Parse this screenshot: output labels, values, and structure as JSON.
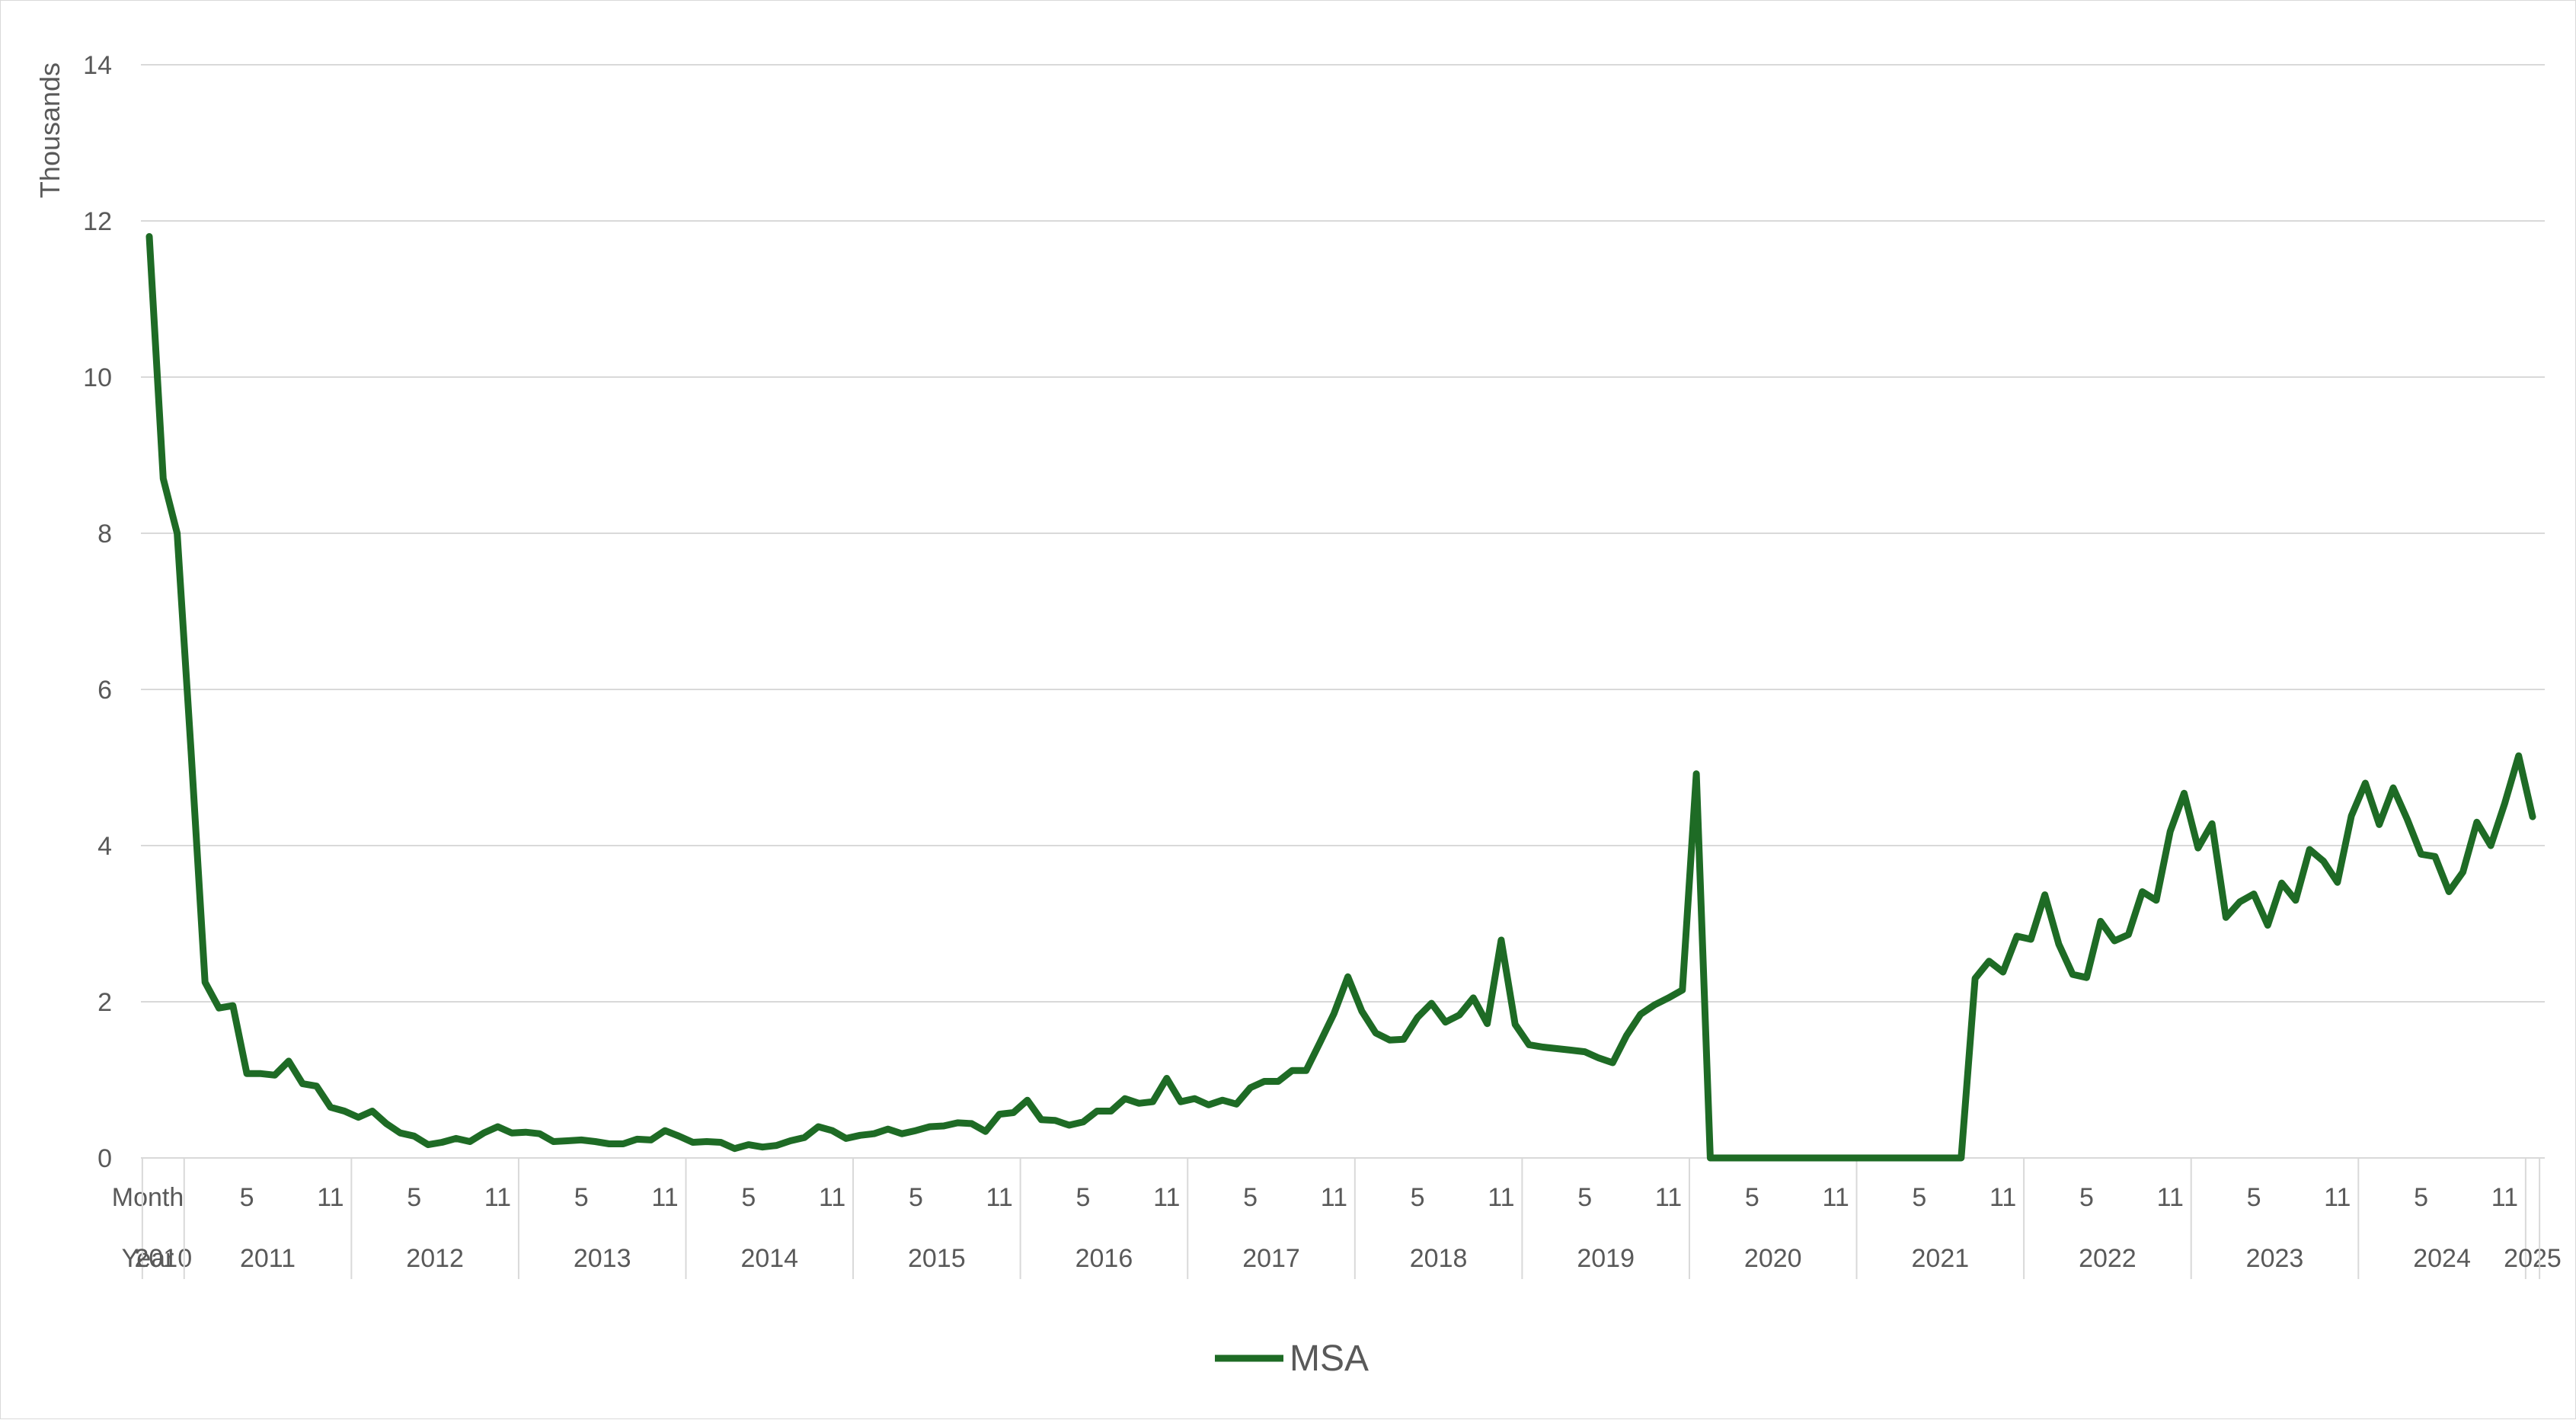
{
  "chart_data": {
    "type": "line",
    "ylabel": "Thousands",
    "ylim": [
      0,
      14
    ],
    "yticks": [
      0,
      2,
      4,
      6,
      8,
      10,
      12,
      14
    ],
    "grid": true,
    "legend_position": "bottom",
    "x_axis_level_labels": [
      "Month",
      "Year"
    ],
    "series_color": "#1e6b25",
    "x": [
      "2010-10",
      "2010-11",
      "2010-12",
      "2011-01",
      "2011-02",
      "2011-03",
      "2011-04",
      "2011-05",
      "2011-06",
      "2011-07",
      "2011-08",
      "2011-09",
      "2011-10",
      "2011-11",
      "2011-12",
      "2012-01",
      "2012-02",
      "2012-03",
      "2012-04",
      "2012-05",
      "2012-06",
      "2012-07",
      "2012-08",
      "2012-09",
      "2012-10",
      "2012-11",
      "2012-12",
      "2013-01",
      "2013-02",
      "2013-03",
      "2013-04",
      "2013-05",
      "2013-06",
      "2013-07",
      "2013-08",
      "2013-09",
      "2013-10",
      "2013-11",
      "2013-12",
      "2014-01",
      "2014-02",
      "2014-03",
      "2014-04",
      "2014-05",
      "2014-06",
      "2014-07",
      "2014-08",
      "2014-09",
      "2014-10",
      "2014-11",
      "2014-12",
      "2015-01",
      "2015-02",
      "2015-03",
      "2015-04",
      "2015-05",
      "2015-06",
      "2015-07",
      "2015-08",
      "2015-09",
      "2015-10",
      "2015-11",
      "2015-12",
      "2016-01",
      "2016-02",
      "2016-03",
      "2016-04",
      "2016-05",
      "2016-06",
      "2016-07",
      "2016-08",
      "2016-09",
      "2016-10",
      "2016-11",
      "2016-12",
      "2017-01",
      "2017-02",
      "2017-03",
      "2017-04",
      "2017-05",
      "2017-06",
      "2017-07",
      "2017-08",
      "2017-09",
      "2017-10",
      "2017-11",
      "2017-12",
      "2018-01",
      "2018-02",
      "2018-03",
      "2018-04",
      "2018-05",
      "2018-06",
      "2018-07",
      "2018-08",
      "2018-09",
      "2018-10",
      "2018-11",
      "2018-12",
      "2019-01",
      "2019-02",
      "2019-03",
      "2019-04",
      "2019-05",
      "2019-06",
      "2019-07",
      "2019-08",
      "2019-09",
      "2019-10",
      "2019-11",
      "2019-12",
      "2020-01",
      "2020-02",
      "2020-03",
      "2020-04",
      "2020-05",
      "2020-06",
      "2020-07",
      "2020-08",
      "2020-09",
      "2020-10",
      "2020-11",
      "2020-12",
      "2021-01",
      "2021-02",
      "2021-03",
      "2021-04",
      "2021-05",
      "2021-06",
      "2021-07",
      "2021-08",
      "2021-09",
      "2021-10",
      "2021-11",
      "2021-12",
      "2022-01",
      "2022-02",
      "2022-03",
      "2022-04",
      "2022-05",
      "2022-06",
      "2022-07",
      "2022-08",
      "2022-09",
      "2022-10",
      "2022-11",
      "2022-12",
      "2023-01",
      "2023-02",
      "2023-03",
      "2023-04",
      "2023-05",
      "2023-06",
      "2023-07",
      "2023-08",
      "2023-09",
      "2023-10",
      "2023-11",
      "2023-12",
      "2024-01",
      "2024-02",
      "2024-03",
      "2024-04",
      "2024-05",
      "2024-06",
      "2024-07",
      "2024-08",
      "2024-09",
      "2024-10",
      "2024-11",
      "2024-12",
      "2025-01"
    ],
    "series": [
      {
        "name": "MSA",
        "values": [
          11.8,
          8.7,
          8.0,
          5.2,
          2.25,
          1.92,
          1.95,
          1.08,
          1.08,
          1.06,
          1.24,
          0.95,
          0.92,
          0.65,
          0.6,
          0.52,
          0.6,
          0.44,
          0.32,
          0.28,
          0.17,
          0.2,
          0.25,
          0.21,
          0.32,
          0.4,
          0.32,
          0.33,
          0.31,
          0.21,
          0.22,
          0.23,
          0.21,
          0.18,
          0.18,
          0.24,
          0.23,
          0.35,
          0.28,
          0.2,
          0.21,
          0.2,
          0.12,
          0.17,
          0.14,
          0.16,
          0.22,
          0.26,
          0.4,
          0.35,
          0.25,
          0.29,
          0.31,
          0.37,
          0.31,
          0.35,
          0.4,
          0.41,
          0.45,
          0.44,
          0.34,
          0.56,
          0.58,
          0.74,
          0.49,
          0.48,
          0.42,
          0.46,
          0.6,
          0.6,
          0.76,
          0.7,
          0.72,
          1.02,
          0.72,
          0.76,
          0.68,
          0.74,
          0.69,
          0.9,
          0.98,
          0.98,
          1.12,
          1.12,
          1.48,
          1.85,
          2.32,
          1.88,
          1.6,
          1.51,
          1.52,
          1.8,
          1.98,
          1.74,
          1.83,
          2.05,
          1.72,
          2.79,
          1.71,
          1.45,
          1.42,
          1.4,
          1.38,
          1.36,
          1.28,
          1.22,
          1.57,
          1.84,
          1.96,
          2.05,
          2.15,
          4.92,
          0.0,
          0.0,
          0.0,
          0.0,
          0.0,
          0.0,
          0.0,
          0.0,
          0.0,
          0.0,
          0.0,
          0.0,
          0.0,
          0.0,
          0.0,
          0.0,
          0.0,
          0.0,
          0.0,
          2.3,
          2.52,
          2.38,
          2.84,
          2.8,
          3.37,
          2.74,
          2.35,
          2.31,
          3.03,
          2.78,
          2.86,
          3.41,
          3.3,
          4.18,
          4.67,
          3.97,
          4.28,
          3.08,
          3.28,
          3.38,
          2.98,
          3.52,
          3.3,
          3.95,
          3.8,
          3.53,
          4.38,
          4.8,
          4.27,
          4.74,
          4.34,
          3.89,
          3.86,
          3.41,
          3.66,
          4.3,
          4.0,
          4.54,
          5.15,
          4.37
        ]
      }
    ],
    "x_axis_month_labels": [
      {
        "label": "5",
        "x": "2011-05"
      },
      {
        "label": "11",
        "x": "2011-11"
      },
      {
        "label": "5",
        "x": "2012-05"
      },
      {
        "label": "11",
        "x": "2012-11"
      },
      {
        "label": "5",
        "x": "2013-05"
      },
      {
        "label": "11",
        "x": "2013-11"
      },
      {
        "label": "5",
        "x": "2014-05"
      },
      {
        "label": "11",
        "x": "2014-11"
      },
      {
        "label": "5",
        "x": "2015-05"
      },
      {
        "label": "11",
        "x": "2015-11"
      },
      {
        "label": "5",
        "x": "2016-05"
      },
      {
        "label": "11",
        "x": "2016-11"
      },
      {
        "label": "5",
        "x": "2017-05"
      },
      {
        "label": "11",
        "x": "2017-11"
      },
      {
        "label": "5",
        "x": "2018-05"
      },
      {
        "label": "11",
        "x": "2018-11"
      },
      {
        "label": "5",
        "x": "2019-05"
      },
      {
        "label": "11",
        "x": "2019-11"
      },
      {
        "label": "5",
        "x": "2020-05"
      },
      {
        "label": "11",
        "x": "2020-11"
      },
      {
        "label": "5",
        "x": "2021-05"
      },
      {
        "label": "11",
        "x": "2021-11"
      },
      {
        "label": "5",
        "x": "2022-05"
      },
      {
        "label": "11",
        "x": "2022-11"
      },
      {
        "label": "5",
        "x": "2023-05"
      },
      {
        "label": "11",
        "x": "2023-11"
      },
      {
        "label": "5",
        "x": "2024-05"
      },
      {
        "label": "11",
        "x": "2024-11"
      }
    ],
    "x_axis_year_groups": [
      {
        "label": "2010",
        "start": "2010-10",
        "end": "2010-12"
      },
      {
        "label": "2011",
        "start": "2011-01",
        "end": "2011-12"
      },
      {
        "label": "2012",
        "start": "2012-01",
        "end": "2012-12"
      },
      {
        "label": "2013",
        "start": "2013-01",
        "end": "2013-12"
      },
      {
        "label": "2014",
        "start": "2014-01",
        "end": "2014-12"
      },
      {
        "label": "2015",
        "start": "2015-01",
        "end": "2015-12"
      },
      {
        "label": "2016",
        "start": "2016-01",
        "end": "2016-12"
      },
      {
        "label": "2017",
        "start": "2017-01",
        "end": "2017-12"
      },
      {
        "label": "2018",
        "start": "2018-01",
        "end": "2018-12"
      },
      {
        "label": "2019",
        "start": "2019-01",
        "end": "2019-12"
      },
      {
        "label": "2020",
        "start": "2020-01",
        "end": "2020-12"
      },
      {
        "label": "2021",
        "start": "2021-01",
        "end": "2021-12"
      },
      {
        "label": "2022",
        "start": "2022-01",
        "end": "2022-12"
      },
      {
        "label": "2023",
        "start": "2023-01",
        "end": "2023-12"
      },
      {
        "label": "2024",
        "start": "2024-01",
        "end": "2024-12"
      },
      {
        "label": "2025",
        "start": "2025-01",
        "end": "2025-01"
      }
    ]
  }
}
